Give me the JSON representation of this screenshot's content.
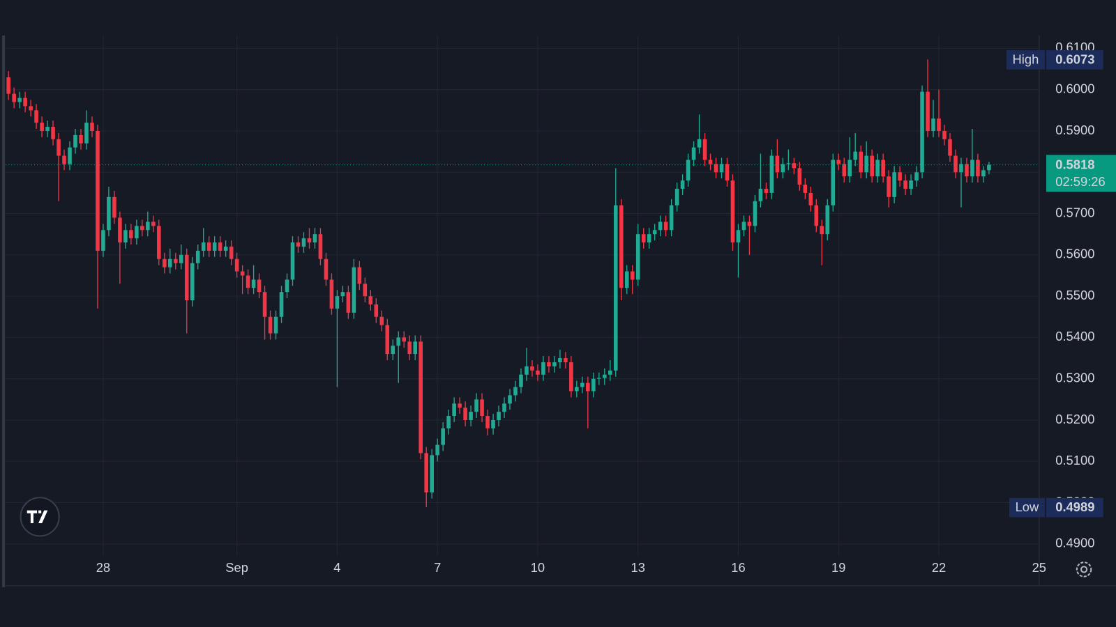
{
  "chart_data": {
    "type": "candlestick",
    "up_color": "#22ab94",
    "down_color": "#f23645",
    "grid": true,
    "xlim": [
      -0.5,
      185
    ],
    "ylim": [
      0.4878,
      0.6131
    ],
    "xticks": [
      {
        "value": 17,
        "label": "28"
      },
      {
        "value": 41,
        "label": "Sep"
      },
      {
        "value": 59,
        "label": "4"
      },
      {
        "value": 77,
        "label": "7"
      },
      {
        "value": 95,
        "label": "10"
      },
      {
        "value": 113,
        "label": "13"
      },
      {
        "value": 131,
        "label": "16"
      },
      {
        "value": 149,
        "label": "19"
      },
      {
        "value": 167,
        "label": "22"
      },
      {
        "value": 185,
        "label": "25"
      }
    ],
    "yticks": [
      {
        "value": 0.49,
        "label": "0.4900"
      },
      {
        "value": 0.5,
        "label": "0.5000"
      },
      {
        "value": 0.51,
        "label": "0.5100"
      },
      {
        "value": 0.52,
        "label": "0.5200"
      },
      {
        "value": 0.53,
        "label": "0.5300"
      },
      {
        "value": 0.54,
        "label": "0.5400"
      },
      {
        "value": 0.55,
        "label": "0.5500"
      },
      {
        "value": 0.56,
        "label": "0.5600"
      },
      {
        "value": 0.57,
        "label": "0.5700"
      },
      {
        "value": 0.58,
        "label": "0.5800"
      },
      {
        "value": 0.59,
        "label": "0.5900"
      },
      {
        "value": 0.6,
        "label": "0.6000"
      },
      {
        "value": 0.61,
        "label": "0.6100"
      }
    ],
    "high": {
      "label": "High",
      "value": 0.6073
    },
    "low": {
      "label": "Low",
      "value": 0.4989
    },
    "last": {
      "value": 0.5818,
      "countdown": "02:59:26"
    },
    "ohlc": [
      [
        0.603,
        0.6045,
        0.5975,
        0.599
      ],
      [
        0.599,
        0.6005,
        0.5955,
        0.597
      ],
      [
        0.597,
        0.5995,
        0.5955,
        0.598
      ],
      [
        0.598,
        0.5995,
        0.5945,
        0.596
      ],
      [
        0.596,
        0.5975,
        0.5935,
        0.595
      ],
      [
        0.595,
        0.5965,
        0.5905,
        0.592
      ],
      [
        0.592,
        0.5935,
        0.5885,
        0.59
      ],
      [
        0.59,
        0.5925,
        0.5885,
        0.591
      ],
      [
        0.591,
        0.5925,
        0.5865,
        0.588
      ],
      [
        0.588,
        0.5895,
        0.573,
        0.584
      ],
      [
        0.584,
        0.5855,
        0.5805,
        0.582
      ],
      [
        0.582,
        0.5875,
        0.5805,
        0.586
      ],
      [
        0.586,
        0.5905,
        0.5845,
        0.589
      ],
      [
        0.589,
        0.5905,
        0.5855,
        0.587
      ],
      [
        0.587,
        0.595,
        0.5855,
        0.592
      ],
      [
        0.592,
        0.5935,
        0.5885,
        0.59
      ],
      [
        0.59,
        0.5915,
        0.547,
        0.561
      ],
      [
        0.561,
        0.5675,
        0.5595,
        0.566
      ],
      [
        0.566,
        0.5765,
        0.5645,
        0.574
      ],
      [
        0.574,
        0.5755,
        0.5675,
        0.569
      ],
      [
        0.569,
        0.5705,
        0.553,
        0.563
      ],
      [
        0.563,
        0.5675,
        0.5615,
        0.566
      ],
      [
        0.566,
        0.5675,
        0.5625,
        0.564
      ],
      [
        0.564,
        0.5685,
        0.5625,
        0.567
      ],
      [
        0.567,
        0.5685,
        0.5645,
        0.566
      ],
      [
        0.566,
        0.5705,
        0.5645,
        0.568
      ],
      [
        0.568,
        0.5695,
        0.5655,
        0.567
      ],
      [
        0.567,
        0.5685,
        0.5575,
        0.559
      ],
      [
        0.559,
        0.5605,
        0.5555,
        0.557
      ],
      [
        0.557,
        0.5615,
        0.5555,
        0.559
      ],
      [
        0.559,
        0.5605,
        0.5565,
        0.558
      ],
      [
        0.558,
        0.5625,
        0.5565,
        0.56
      ],
      [
        0.56,
        0.5615,
        0.541,
        0.549
      ],
      [
        0.549,
        0.5595,
        0.5475,
        0.558
      ],
      [
        0.558,
        0.5625,
        0.5565,
        0.561
      ],
      [
        0.561,
        0.5665,
        0.5595,
        0.563
      ],
      [
        0.563,
        0.5645,
        0.5595,
        0.561
      ],
      [
        0.561,
        0.5645,
        0.5595,
        0.563
      ],
      [
        0.563,
        0.5645,
        0.5595,
        0.561
      ],
      [
        0.561,
        0.5635,
        0.5595,
        0.562
      ],
      [
        0.562,
        0.5635,
        0.5575,
        0.559
      ],
      [
        0.559,
        0.5605,
        0.5545,
        0.556
      ],
      [
        0.556,
        0.5575,
        0.5505,
        0.555
      ],
      [
        0.555,
        0.5565,
        0.5505,
        0.552
      ],
      [
        0.552,
        0.5575,
        0.5505,
        0.554
      ],
      [
        0.554,
        0.5555,
        0.5495,
        0.551
      ],
      [
        0.551,
        0.5525,
        0.5395,
        0.545
      ],
      [
        0.545,
        0.5465,
        0.5395,
        0.541
      ],
      [
        0.541,
        0.5465,
        0.5395,
        0.545
      ],
      [
        0.545,
        0.5525,
        0.5435,
        0.551
      ],
      [
        0.551,
        0.5555,
        0.5495,
        0.554
      ],
      [
        0.554,
        0.5645,
        0.5525,
        0.563
      ],
      [
        0.563,
        0.5645,
        0.5605,
        0.562
      ],
      [
        0.562,
        0.5655,
        0.5605,
        0.564
      ],
      [
        0.564,
        0.5665,
        0.5615,
        0.563
      ],
      [
        0.563,
        0.5665,
        0.5615,
        0.565
      ],
      [
        0.565,
        0.5665,
        0.5575,
        0.559
      ],
      [
        0.559,
        0.5605,
        0.5525,
        0.554
      ],
      [
        0.554,
        0.5555,
        0.5455,
        0.547
      ],
      [
        0.547,
        0.5515,
        0.528,
        0.55
      ],
      [
        0.55,
        0.5525,
        0.5485,
        0.551
      ],
      [
        0.551,
        0.5525,
        0.5445,
        0.546
      ],
      [
        0.546,
        0.559,
        0.5445,
        0.557
      ],
      [
        0.557,
        0.5585,
        0.5515,
        0.553
      ],
      [
        0.553,
        0.5545,
        0.5485,
        0.55
      ],
      [
        0.55,
        0.5515,
        0.5465,
        0.548
      ],
      [
        0.548,
        0.5495,
        0.5435,
        0.545
      ],
      [
        0.545,
        0.5465,
        0.5415,
        0.543
      ],
      [
        0.543,
        0.5445,
        0.5345,
        0.536
      ],
      [
        0.536,
        0.5395,
        0.5345,
        0.538
      ],
      [
        0.538,
        0.5415,
        0.529,
        0.54
      ],
      [
        0.54,
        0.5415,
        0.5375,
        0.539
      ],
      [
        0.539,
        0.5405,
        0.5345,
        0.536
      ],
      [
        0.536,
        0.5405,
        0.5345,
        0.539
      ],
      [
        0.539,
        0.5405,
        0.5105,
        0.512
      ],
      [
        0.512,
        0.5135,
        0.4989,
        0.5025
      ],
      [
        0.5025,
        0.513,
        0.501,
        0.5115
      ],
      [
        0.5115,
        0.5155,
        0.51,
        0.514
      ],
      [
        0.514,
        0.5195,
        0.5125,
        0.518
      ],
      [
        0.518,
        0.5225,
        0.5165,
        0.521
      ],
      [
        0.521,
        0.5255,
        0.5195,
        0.524
      ],
      [
        0.524,
        0.5255,
        0.5215,
        0.523
      ],
      [
        0.523,
        0.5245,
        0.5185,
        0.52
      ],
      [
        0.52,
        0.5235,
        0.5185,
        0.522
      ],
      [
        0.522,
        0.5265,
        0.5205,
        0.525
      ],
      [
        0.525,
        0.5265,
        0.5195,
        0.521
      ],
      [
        0.521,
        0.5225,
        0.5163,
        0.518
      ],
      [
        0.518,
        0.5215,
        0.5165,
        0.52
      ],
      [
        0.52,
        0.5235,
        0.5185,
        0.522
      ],
      [
        0.522,
        0.5255,
        0.5205,
        0.524
      ],
      [
        0.524,
        0.5275,
        0.5225,
        0.526
      ],
      [
        0.526,
        0.5295,
        0.5245,
        0.528
      ],
      [
        0.528,
        0.5325,
        0.5265,
        0.531
      ],
      [
        0.531,
        0.5375,
        0.5295,
        0.533
      ],
      [
        0.533,
        0.5345,
        0.5305,
        0.532
      ],
      [
        0.532,
        0.5335,
        0.5295,
        0.531
      ],
      [
        0.531,
        0.5355,
        0.5295,
        0.534
      ],
      [
        0.534,
        0.5355,
        0.5315,
        0.533
      ],
      [
        0.533,
        0.5355,
        0.5315,
        0.534
      ],
      [
        0.534,
        0.537,
        0.5325,
        0.535
      ],
      [
        0.535,
        0.5365,
        0.5325,
        0.534
      ],
      [
        0.534,
        0.5355,
        0.5255,
        0.527
      ],
      [
        0.527,
        0.5295,
        0.5255,
        0.528
      ],
      [
        0.528,
        0.5305,
        0.5265,
        0.529
      ],
      [
        0.529,
        0.5305,
        0.518,
        0.527
      ],
      [
        0.527,
        0.5315,
        0.5255,
        0.53
      ],
      [
        0.53,
        0.5315,
        0.5285,
        0.5302
      ],
      [
        0.5302,
        0.5325,
        0.5285,
        0.531
      ],
      [
        0.531,
        0.5345,
        0.5295,
        0.532
      ],
      [
        0.532,
        0.581,
        0.5305,
        0.572
      ],
      [
        0.572,
        0.5735,
        0.549,
        0.552
      ],
      [
        0.552,
        0.5575,
        0.5505,
        0.556
      ],
      [
        0.556,
        0.5575,
        0.5505,
        0.554
      ],
      [
        0.554,
        0.5675,
        0.5525,
        0.565
      ],
      [
        0.565,
        0.5665,
        0.5615,
        0.563
      ],
      [
        0.563,
        0.5665,
        0.5615,
        0.565
      ],
      [
        0.565,
        0.5675,
        0.5635,
        0.566
      ],
      [
        0.566,
        0.5695,
        0.5645,
        0.568
      ],
      [
        0.568,
        0.5695,
        0.5645,
        0.566
      ],
      [
        0.566,
        0.5735,
        0.5645,
        0.572
      ],
      [
        0.572,
        0.5775,
        0.5705,
        0.576
      ],
      [
        0.576,
        0.5795,
        0.5745,
        0.578
      ],
      [
        0.578,
        0.5845,
        0.5765,
        0.583
      ],
      [
        0.583,
        0.5875,
        0.5815,
        0.586
      ],
      [
        0.586,
        0.594,
        0.5845,
        0.588
      ],
      [
        0.588,
        0.5895,
        0.5815,
        0.583
      ],
      [
        0.583,
        0.5845,
        0.5805,
        0.582
      ],
      [
        0.582,
        0.5835,
        0.5785,
        0.58
      ],
      [
        0.58,
        0.5835,
        0.5785,
        0.582
      ],
      [
        0.582,
        0.5835,
        0.5765,
        0.578
      ],
      [
        0.578,
        0.5795,
        0.561,
        0.563
      ],
      [
        0.563,
        0.5675,
        0.5545,
        0.566
      ],
      [
        0.566,
        0.5695,
        0.5645,
        0.568
      ],
      [
        0.568,
        0.5695,
        0.56,
        0.567
      ],
      [
        0.567,
        0.5745,
        0.5655,
        0.573
      ],
      [
        0.573,
        0.5845,
        0.5715,
        0.576
      ],
      [
        0.576,
        0.5775,
        0.5735,
        0.575
      ],
      [
        0.575,
        0.5855,
        0.5735,
        0.584
      ],
      [
        0.584,
        0.588,
        0.5785,
        0.58
      ],
      [
        0.58,
        0.5835,
        0.5785,
        0.582
      ],
      [
        0.582,
        0.5855,
        0.5805,
        0.5822
      ],
      [
        0.5822,
        0.5835,
        0.5795,
        0.581
      ],
      [
        0.581,
        0.5825,
        0.5755,
        0.577
      ],
      [
        0.577,
        0.5785,
        0.5735,
        0.575
      ],
      [
        0.575,
        0.5765,
        0.5705,
        0.572
      ],
      [
        0.572,
        0.5735,
        0.5655,
        0.567
      ],
      [
        0.567,
        0.5685,
        0.5575,
        0.565
      ],
      [
        0.565,
        0.5735,
        0.5635,
        0.572
      ],
      [
        0.572,
        0.5845,
        0.5705,
        0.583
      ],
      [
        0.583,
        0.5845,
        0.5805,
        0.582
      ],
      [
        0.582,
        0.5835,
        0.5775,
        0.579
      ],
      [
        0.579,
        0.5885,
        0.5775,
        0.583
      ],
      [
        0.583,
        0.5895,
        0.5815,
        0.585
      ],
      [
        0.585,
        0.5865,
        0.5785,
        0.58
      ],
      [
        0.58,
        0.5875,
        0.5785,
        0.584
      ],
      [
        0.584,
        0.5855,
        0.5775,
        0.579
      ],
      [
        0.579,
        0.5845,
        0.5775,
        0.583
      ],
      [
        0.583,
        0.5845,
        0.5775,
        0.579
      ],
      [
        0.579,
        0.5805,
        0.5715,
        0.574
      ],
      [
        0.574,
        0.5815,
        0.5725,
        0.58
      ],
      [
        0.58,
        0.5815,
        0.5765,
        0.578
      ],
      [
        0.578,
        0.5795,
        0.5745,
        0.576
      ],
      [
        0.576,
        0.5795,
        0.5745,
        0.578
      ],
      [
        0.578,
        0.5815,
        0.5765,
        0.58
      ],
      [
        0.58,
        0.601,
        0.5785,
        0.5995
      ],
      [
        0.5995,
        0.6073,
        0.5885,
        0.59
      ],
      [
        0.59,
        0.5975,
        0.5885,
        0.593
      ],
      [
        0.593,
        0.6,
        0.5885,
        0.59
      ],
      [
        0.59,
        0.5915,
        0.5865,
        0.588
      ],
      [
        0.588,
        0.5895,
        0.5825,
        0.584
      ],
      [
        0.584,
        0.5855,
        0.5785,
        0.58
      ],
      [
        0.58,
        0.5835,
        0.5715,
        0.582
      ],
      [
        0.582,
        0.5835,
        0.5775,
        0.579
      ],
      [
        0.579,
        0.5905,
        0.5775,
        0.583
      ],
      [
        0.583,
        0.5845,
        0.5775,
        0.579
      ],
      [
        0.579,
        0.5815,
        0.5775,
        0.5805
      ],
      [
        0.5805,
        0.5825,
        0.5795,
        0.5818
      ]
    ]
  }
}
